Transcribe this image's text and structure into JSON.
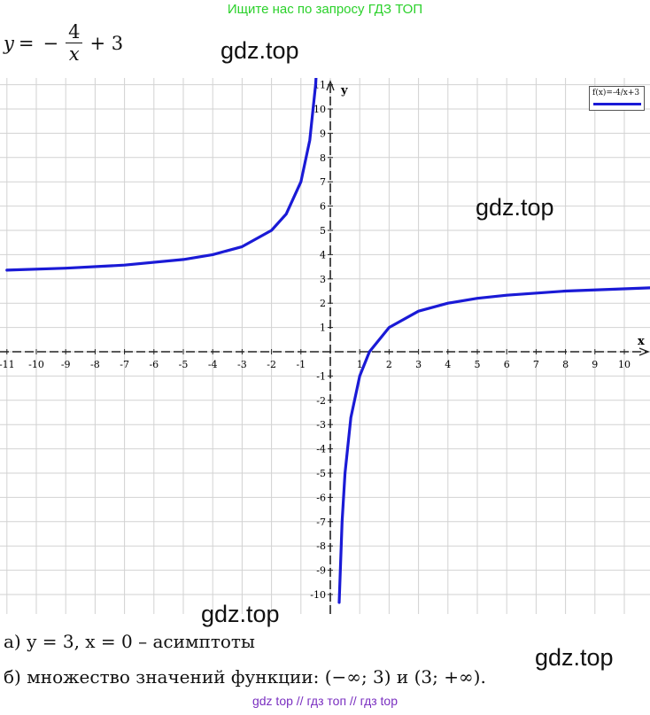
{
  "banner": "Ищите нас по запросу ГДЗ ТОП",
  "formula": {
    "lhs": "y",
    "eq": "=",
    "minus": "−",
    "num": "4",
    "den": "x",
    "plus": "+ 3"
  },
  "watermarks": [
    "gdz.top",
    "gdz.top",
    "gdz.top",
    "gdz.top"
  ],
  "answers": {
    "a": "а) y = 3,        x = 0 – асимптоты",
    "b": "б) множество значений функции: (−∞; 3) и (3;  +∞)."
  },
  "footer": "gdz top  //  гдз топ  //  гдз top",
  "colors": {
    "curve": "#1a1ad6",
    "grid": "#d2d2d2",
    "axis": "#222222",
    "banner": "#2bd12b",
    "footer": "#7a2fc0"
  },
  "chart_data": {
    "type": "line",
    "function": "y = -4/x + 3",
    "legend": "f(x)=-4/x+3",
    "legend_position": "top-right",
    "xlabel": "x",
    "ylabel": "y",
    "xlim": [
      -11,
      11
    ],
    "ylim": [
      -11,
      11
    ],
    "grid": true,
    "x_ticks": [
      -11,
      -10,
      -9,
      -8,
      -7,
      -6,
      -5,
      -4,
      -3,
      -2,
      -1,
      1,
      2,
      3,
      4,
      5,
      6,
      7,
      8,
      9,
      10
    ],
    "y_ticks": [
      -10,
      -9,
      -8,
      -7,
      -6,
      -5,
      -4,
      -3,
      -2,
      -1,
      1,
      2,
      3,
      4,
      5,
      6,
      7,
      8,
      9,
      10,
      11
    ],
    "asymptotes": {
      "horizontal": 3,
      "vertical": 0
    },
    "series": [
      {
        "name": "f(x)=-4/x+3",
        "branches": [
          {
            "x": [
              -11,
              -9,
              -7,
              -5,
              -4,
              -3,
              -2,
              -1.5,
              -1,
              -0.7,
              -0.5,
              -0.4
            ],
            "y": [
              3.36,
              3.44,
              3.57,
              3.8,
              4,
              4.33,
              5,
              5.67,
              7,
              8.71,
              11,
              13
            ]
          },
          {
            "x": [
              0.3,
              0.4,
              0.5,
              0.7,
              1,
              1.33,
              2,
              3,
              4,
              5,
              6,
              8,
              11
            ],
            "y": [
              -10.33,
              -7,
              -5,
              -2.71,
              -1,
              0,
              1,
              1.67,
              2,
              2.2,
              2.33,
              2.5,
              2.64
            ]
          }
        ]
      }
    ]
  }
}
